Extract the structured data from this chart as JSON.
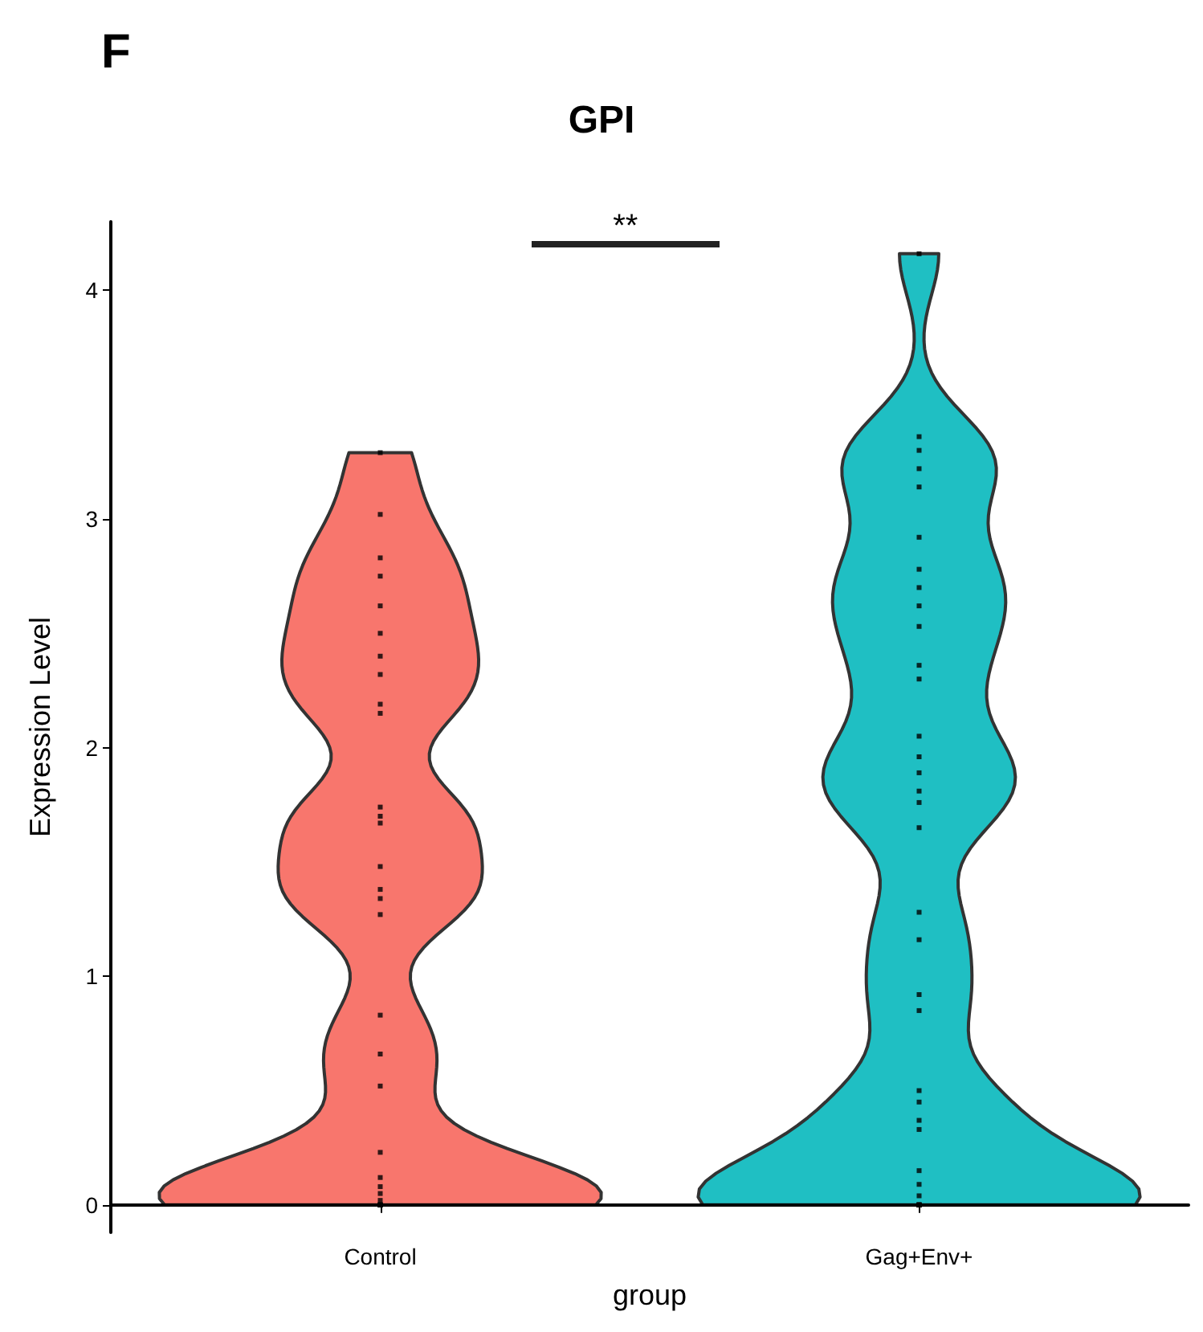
{
  "chart_data": {
    "type": "scatter",
    "title": "GPI",
    "xlabel": "group",
    "ylabel": "Expression Level",
    "annotations": [
      "F",
      "**"
    ],
    "categories": [
      "Control",
      "Gag+Env+"
    ],
    "colors": [
      "#f8766d",
      "#1fbfc3"
    ],
    "ylim": [
      -0.12,
      4.3
    ],
    "yticks": [
      0,
      1,
      2,
      3,
      4
    ],
    "grid": false,
    "marker": "square",
    "series": [
      {
        "color": "#000000",
        "x": [
          "Control",
          "Control",
          "Control",
          "Control",
          "Control",
          "Control",
          "Control",
          "Control",
          "Control",
          "Control",
          "Control",
          "Control",
          "Control",
          "Control",
          "Control",
          "Control",
          "Control",
          "Control",
          "Control",
          "Control",
          "Control",
          "Control",
          "Control",
          "Control",
          "Control",
          "Control",
          "Control",
          "Control",
          "Control",
          "Control"
        ],
        "values": [
          3.29,
          3.02,
          2.83,
          2.75,
          2.62,
          2.5,
          2.4,
          2.32,
          2.19,
          2.15,
          1.74,
          1.7,
          1.67,
          1.48,
          1.38,
          1.34,
          1.27,
          0.83,
          0.66,
          0.52,
          0.23,
          0.12,
          0.08,
          0.05,
          0.02,
          0,
          0,
          0,
          0,
          0
        ]
      },
      {
        "color": "#000000",
        "x": [
          "Gag+Env+",
          "Gag+Env+",
          "Gag+Env+",
          "Gag+Env+",
          "Gag+Env+",
          "Gag+Env+",
          "Gag+Env+",
          "Gag+Env+",
          "Gag+Env+",
          "Gag+Env+",
          "Gag+Env+",
          "Gag+Env+",
          "Gag+Env+",
          "Gag+Env+",
          "Gag+Env+",
          "Gag+Env+",
          "Gag+Env+",
          "Gag+Env+",
          "Gag+Env+",
          "Gag+Env+",
          "Gag+Env+",
          "Gag+Env+",
          "Gag+Env+",
          "Gag+Env+",
          "Gag+Env+",
          "Gag+Env+",
          "Gag+Env+",
          "Gag+Env+",
          "Gag+Env+",
          "Gag+Env+",
          "Gag+Env+",
          "Gag+Env+",
          "Gag+Env+",
          "Gag+Env+",
          "Gag+Env+",
          "Gag+Env+",
          "Gag+Env+"
        ],
        "values": [
          4.16,
          3.36,
          3.3,
          3.22,
          3.14,
          2.92,
          2.78,
          2.7,
          2.62,
          2.53,
          2.36,
          2.3,
          2.05,
          1.96,
          1.89,
          1.81,
          1.76,
          1.65,
          1.28,
          1.16,
          0.92,
          0.85,
          0.5,
          0.45,
          0.37,
          0.33,
          0.15,
          0.09,
          0.04,
          0,
          0,
          0,
          0,
          0,
          0,
          0,
          0
        ]
      }
    ]
  }
}
